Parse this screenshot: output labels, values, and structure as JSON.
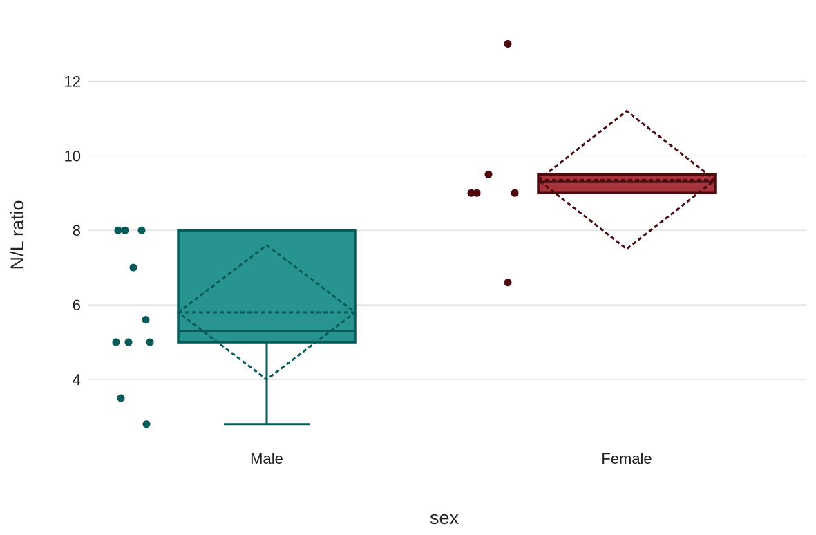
{
  "chart_data": {
    "type": "box",
    "xlabel": "sex",
    "ylabel": "N/L ratio",
    "ylim": [
      2.3,
      13.6
    ],
    "yticks": [
      4,
      6,
      8,
      10,
      12
    ],
    "grid": true,
    "categories": [
      "Male",
      "Female"
    ],
    "groups": [
      {
        "category": "Male",
        "color": "#085b58",
        "fill": "#279490",
        "box": {
          "min": 2.8,
          "q1": 5.0,
          "median": 5.3,
          "q3": 8.0,
          "max": 8.0
        },
        "mean": 5.8,
        "mean_ci": [
          4.0,
          7.6
        ],
        "points": [
          8,
          8,
          8,
          7,
          5.6,
          5,
          5,
          5,
          3.5,
          2.8
        ]
      },
      {
        "category": "Female",
        "color": "#4a0a0e",
        "fill": "#a5343c",
        "box": {
          "min": 9.0,
          "q1": 9.0,
          "median": 9.3,
          "q3": 9.5,
          "max": 9.5
        },
        "mean": 9.35,
        "mean_ci": [
          7.5,
          11.2
        ],
        "points": [
          13,
          9.5,
          9,
          9,
          9,
          6.6
        ]
      }
    ]
  }
}
